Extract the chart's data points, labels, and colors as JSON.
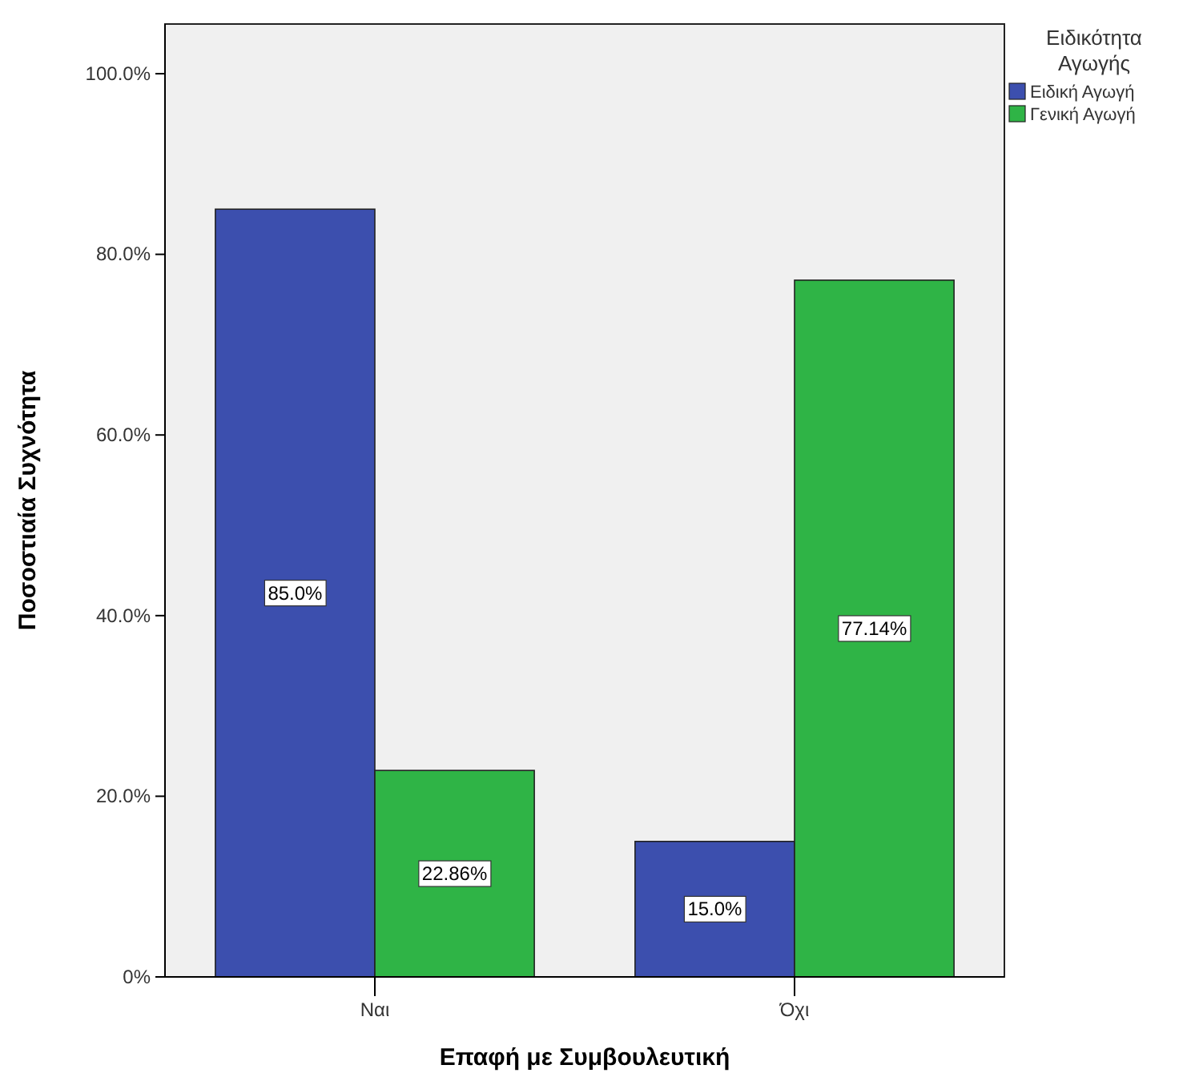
{
  "chart_data": {
    "type": "bar",
    "xlabel": "Επαφή με Συμβουλευτική",
    "ylabel": "Ποσοστιαία Συχνότητα",
    "legend_title": "Ειδικότητα Αγωγής",
    "categories": [
      "Ναι",
      "Όχι"
    ],
    "series": [
      {
        "name": "Ειδική Αγωγή",
        "color": "#3c4fae",
        "values": [
          85.0,
          15.0
        ],
        "value_labels": [
          "85.0%",
          "15.0%"
        ]
      },
      {
        "name": "Γενική Αγωγή",
        "color": "#2fb446",
        "values": [
          22.86,
          77.14
        ],
        "value_labels": [
          "22.86%",
          "77.14%"
        ]
      }
    ],
    "ylim": [
      0,
      105.5
    ],
    "yticks": [
      {
        "value": 0,
        "label": "0%"
      },
      {
        "value": 20,
        "label": "20.0%"
      },
      {
        "value": 40,
        "label": "40.0%"
      },
      {
        "value": 60,
        "label": "60.0%"
      },
      {
        "value": 80,
        "label": "80.0%"
      },
      {
        "value": 100,
        "label": "100.0%"
      }
    ],
    "legend": "right"
  }
}
